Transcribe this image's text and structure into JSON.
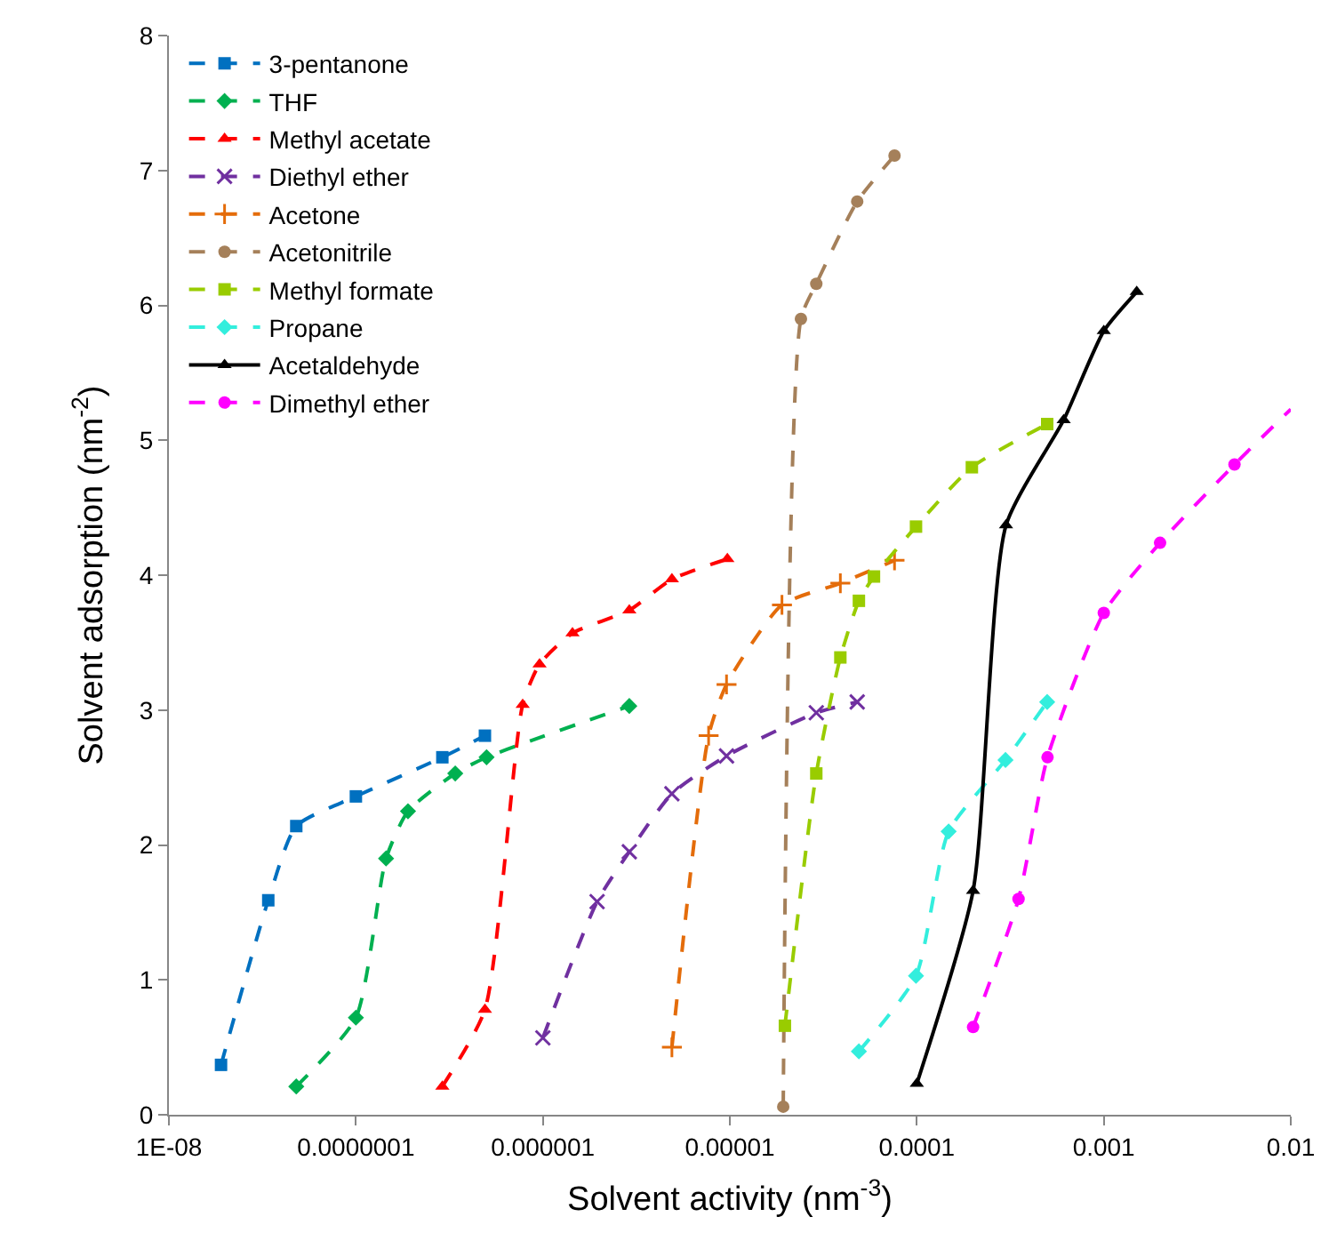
{
  "chart_data": {
    "type": "line",
    "xlabel": "Solvent activity (nm$^{-3}$)",
    "ylabel": "Solvent adsorption (nm$^{-2}$)",
    "log": "x",
    "xlim": [
      1e-08,
      0.01
    ],
    "ylim": [
      0,
      8
    ],
    "xticks": [
      {
        "value": 1e-08,
        "label": "1E-08"
      },
      {
        "value": 1e-07,
        "label": "0.0000001"
      },
      {
        "value": 1e-06,
        "label": "0.000001"
      },
      {
        "value": 1e-05,
        "label": "0.00001"
      },
      {
        "value": 0.0001,
        "label": "0.0001"
      },
      {
        "value": 0.001,
        "label": "0.001"
      },
      {
        "value": 0.01,
        "label": "0.01"
      }
    ],
    "yticks": [
      0,
      1,
      2,
      3,
      4,
      5,
      6,
      7,
      8
    ],
    "grid": false,
    "legend": "top left",
    "series": [
      {
        "name": "3-pentanone",
        "color": "#0070c0",
        "marker": "square",
        "line_style": "dashed",
        "x": [
          1.9e-08,
          3.4e-08,
          4.8e-08,
          1e-07,
          2.9e-07,
          4.9e-07
        ],
        "values": [
          0.37,
          1.59,
          2.14,
          2.36,
          2.65,
          2.81
        ]
      },
      {
        "name": "THF",
        "color": "#00b050",
        "marker": "diamond",
        "line_style": "dashed",
        "x": [
          4.8e-08,
          1e-07,
          1.45e-07,
          1.9e-07,
          3.4e-07,
          5e-07,
          2.9e-06
        ],
        "values": [
          0.21,
          0.72,
          1.9,
          2.25,
          2.53,
          2.65,
          3.03
        ]
      },
      {
        "name": "Methyl acetate",
        "color": "#ff0000",
        "marker": "triangle",
        "line_style": "dashed",
        "x": [
          2.9e-07,
          4.9e-07,
          7.8e-07,
          9.6e-07,
          1.44e-06,
          2.9e-06,
          4.9e-06,
          9.7e-06
        ],
        "values": [
          0.21,
          0.78,
          3.04,
          3.34,
          3.57,
          3.74,
          3.97,
          4.12
        ]
      },
      {
        "name": "Diethyl ether",
        "color": "#7030a0",
        "marker": "x",
        "line_style": "dashed",
        "x": [
          1e-06,
          1.95e-06,
          2.9e-06,
          4.9e-06,
          9.6e-06,
          2.9e-05,
          4.8e-05
        ],
        "values": [
          0.57,
          1.58,
          1.95,
          2.38,
          2.66,
          2.98,
          3.06
        ]
      },
      {
        "name": "Acetone",
        "color": "#e46c0a",
        "marker": "cross",
        "line_style": "dashed",
        "x": [
          4.9e-06,
          7.7e-06,
          9.6e-06,
          1.9e-05,
          3.9e-05,
          7.6e-05
        ],
        "values": [
          0.5,
          2.81,
          3.19,
          3.78,
          3.94,
          4.11
        ]
      },
      {
        "name": "Acetonitrile",
        "color": "#a5805a",
        "marker": "circle",
        "line_style": "dashed",
        "x": [
          1.93e-05,
          2.4e-05,
          2.9e-05,
          4.8e-05,
          7.6e-05
        ],
        "values": [
          0.06,
          5.9,
          6.16,
          6.77,
          7.11
        ]
      },
      {
        "name": "Methyl formate",
        "color": "#99cc00",
        "marker": "square",
        "line_style": "dashed",
        "x": [
          1.97e-05,
          2.9e-05,
          3.9e-05,
          4.9e-05,
          5.9e-05,
          9.9e-05,
          0.000197,
          0.000498
        ],
        "values": [
          0.66,
          2.53,
          3.39,
          3.81,
          3.99,
          4.36,
          4.8,
          5.12
        ]
      },
      {
        "name": "Propane",
        "color": "#33eedd",
        "marker": "diamond",
        "line_style": "dashed",
        "x": [
          4.9e-05,
          9.9e-05,
          0.000148,
          0.000298,
          0.000498
        ],
        "values": [
          0.47,
          1.03,
          2.1,
          2.63,
          3.06
        ]
      },
      {
        "name": "Acetaldehyde",
        "color": "#000000",
        "marker": "triangle",
        "line_style": "solid",
        "x": [
          0.0001,
          0.0002,
          0.0003,
          0.00061,
          0.001,
          0.0015
        ],
        "values": [
          0.23,
          1.66,
          4.37,
          5.15,
          5.81,
          6.1
        ]
      },
      {
        "name": "Dimethyl ether",
        "color": "#ff00ff",
        "marker": "circle",
        "line_style": "dashed",
        "x": [
          0.0002,
          0.00035,
          0.0005,
          0.001,
          0.002,
          0.005,
          0.01
        ],
        "values": [
          0.65,
          1.6,
          2.65,
          3.72,
          4.24,
          4.82,
          5.23
        ]
      }
    ]
  }
}
